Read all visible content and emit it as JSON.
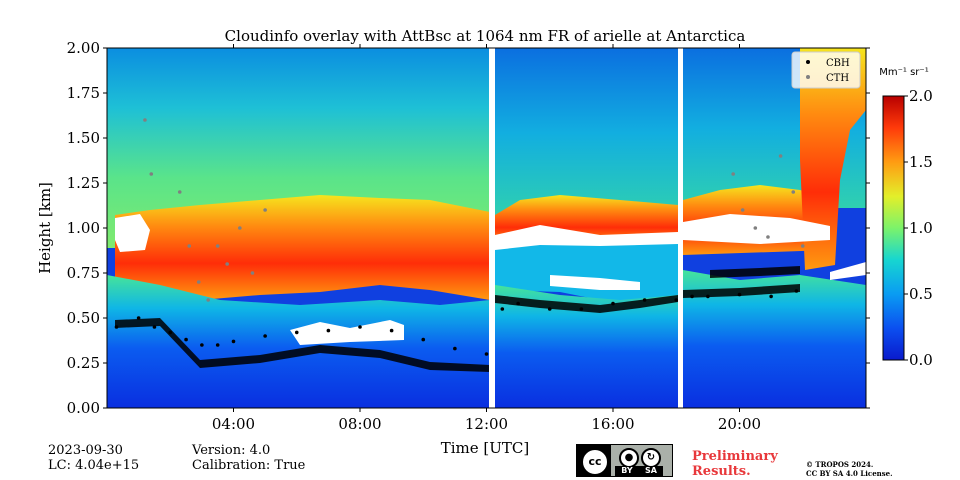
{
  "chart_data": {
    "type": "heatmap",
    "title": "Cloudinfo overlay with AttBsc at 1064 nm FR of arielle at Antarctica",
    "xlabel": "Time [UTC]",
    "ylabel": "Height [km]",
    "xlim": [
      0,
      24
    ],
    "ylim": [
      0,
      2.0
    ],
    "x_ticks": [
      "04:00",
      "08:00",
      "12:00",
      "16:00",
      "20:00"
    ],
    "x_tick_values": [
      4,
      8,
      12,
      16,
      20
    ],
    "y_ticks": [
      "0.00",
      "0.25",
      "0.50",
      "0.75",
      "1.00",
      "1.25",
      "1.50",
      "1.75",
      "2.00"
    ],
    "y_tick_values": [
      0,
      0.25,
      0.5,
      0.75,
      1.0,
      1.25,
      1.5,
      1.75,
      2.0
    ],
    "colorbar": {
      "unit": "Mm⁻¹ sr⁻¹",
      "range": [
        0,
        2.0
      ],
      "ticks": [
        "0.0",
        "0.5",
        "1.0",
        "1.5",
        "2.0"
      ],
      "tick_values": [
        0,
        0.5,
        1.0,
        1.5,
        2.0
      ],
      "colormap": "jet"
    },
    "data_gaps_hours": [
      [
        12.12,
        12.3
      ],
      [
        18.2,
        18.35
      ]
    ],
    "legend": {
      "placement": "top-right",
      "entries": [
        {
          "name": "CBH",
          "color": "#000000"
        },
        {
          "name": "CTH",
          "color": "#808080"
        }
      ]
    },
    "series": [
      {
        "name": "CBH",
        "x": [
          0.3,
          1.0,
          1.5,
          2.0,
          2.5,
          3.0,
          3.5,
          4.0,
          5.0,
          6.0,
          7.0,
          8.0,
          9.0,
          10.0,
          11.0,
          12.0,
          12.5,
          13.0,
          14.0,
          15.0,
          16.0,
          17.0,
          18.0,
          18.5,
          19.0,
          20.0,
          21.0,
          21.8
        ],
        "y": [
          0.45,
          0.5,
          0.45,
          0.42,
          0.38,
          0.35,
          0.35,
          0.37,
          0.4,
          0.42,
          0.43,
          0.45,
          0.43,
          0.38,
          0.33,
          0.3,
          0.55,
          0.58,
          0.55,
          0.55,
          0.58,
          0.6,
          0.6,
          0.62,
          0.62,
          0.63,
          0.62,
          0.65
        ]
      },
      {
        "name": "CTH",
        "x": [
          1.2,
          1.4,
          2.3,
          2.6,
          2.9,
          3.2,
          3.5,
          3.8,
          4.2,
          4.6,
          5.0,
          19.8,
          20.1,
          20.5,
          20.9,
          21.3,
          21.7,
          22.0
        ],
        "y": [
          1.6,
          1.3,
          1.2,
          0.9,
          0.7,
          0.6,
          0.9,
          0.8,
          1.0,
          0.75,
          1.1,
          1.3,
          1.1,
          1.0,
          0.95,
          1.4,
          1.2,
          0.9
        ]
      }
    ]
  },
  "footer": {
    "date": "2023-09-30",
    "lc": "LC: 4.04e+15",
    "version": "Version: 4.0",
    "calibration": "Calibration: True",
    "preliminary_line1": "Preliminary",
    "preliminary_line2": "Results.",
    "copyright_line1": "© TROPOS 2024.",
    "copyright_line2": "CC BY SA 4.0 License.",
    "badge": {
      "cc": "cc",
      "by": "BY",
      "sa": "SA"
    }
  }
}
